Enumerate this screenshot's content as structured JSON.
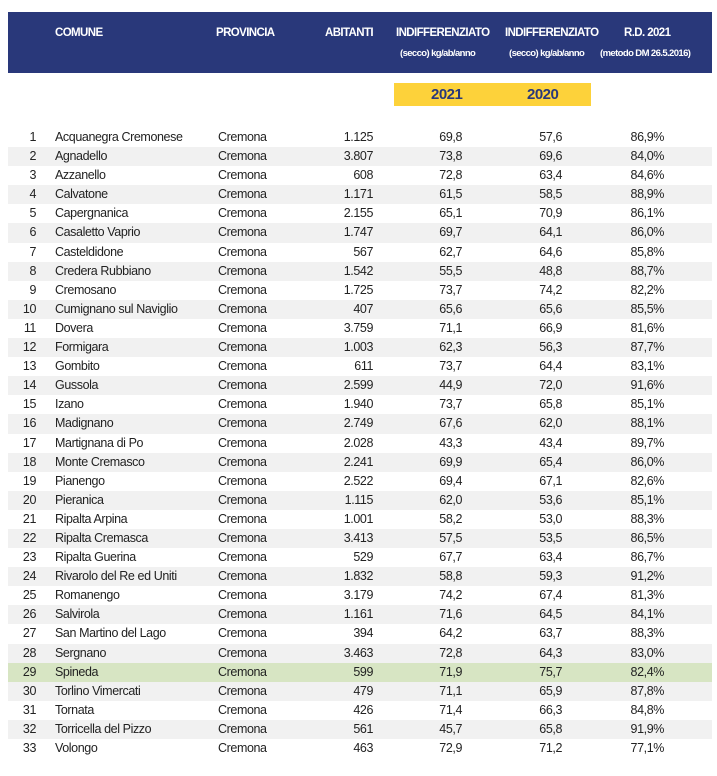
{
  "header": {
    "comune": "COMUNE",
    "provincia": "PROVINCIA",
    "abitanti": "ABITANTI",
    "indiff_1": "INDIFFERENZIATO",
    "indiff_1_sub": "(secco)  kg/ab/anno",
    "indiff_2": "INDIFFERENZIATO",
    "indiff_2_sub": "(secco)  kg/ab/anno",
    "rd": "R.D. 2021",
    "rd_sub": "(metodo DM 26.5.2016)"
  },
  "years": {
    "y1": "2021",
    "y2": "2020"
  },
  "colors": {
    "header_bg": "#29387a",
    "year_band": "#fdd23a",
    "highlight_row": "#d7e5c3",
    "alt_row": "#f1f1f1"
  },
  "highlighted_row": 29,
  "rows": [
    [
      "1",
      "Acquanegra Cremonese",
      "Cremona",
      "1.125",
      "69,8",
      "57,6",
      "86,9%"
    ],
    [
      "2",
      "Agnadello",
      "Cremona",
      "3.807",
      "73,8",
      "69,6",
      "84,0%"
    ],
    [
      "3",
      "Azzanello",
      "Cremona",
      "608",
      "72,8",
      "63,4",
      "84,6%"
    ],
    [
      "4",
      "Calvatone",
      "Cremona",
      "1.171",
      "61,5",
      "58,5",
      "88,9%"
    ],
    [
      "5",
      "Capergnanica",
      "Cremona",
      "2.155",
      "65,1",
      "70,9",
      "86,1%"
    ],
    [
      "6",
      "Casaletto Vaprio",
      "Cremona",
      "1.747",
      "69,7",
      "64,1",
      "86,0%"
    ],
    [
      "7",
      "Casteldidone",
      "Cremona",
      "567",
      "62,7",
      "64,6",
      "85,8%"
    ],
    [
      "8",
      "Credera Rubbiano",
      "Cremona",
      "1.542",
      "55,5",
      "48,8",
      "88,7%"
    ],
    [
      "9",
      "Cremosano",
      "Cremona",
      "1.725",
      "73,7",
      "74,2",
      "82,2%"
    ],
    [
      "10",
      "Cumignano sul Naviglio",
      "Cremona",
      "407",
      "65,6",
      "65,6",
      "85,5%"
    ],
    [
      "11",
      "Dovera",
      "Cremona",
      "3.759",
      "71,1",
      "66,9",
      "81,6%"
    ],
    [
      "12",
      "Formigara",
      "Cremona",
      "1.003",
      "62,3",
      "56,3",
      "87,7%"
    ],
    [
      "13",
      "Gombito",
      "Cremona",
      "611",
      "73,7",
      "64,4",
      "83,1%"
    ],
    [
      "14",
      "Gussola",
      "Cremona",
      "2.599",
      "44,9",
      "72,0",
      "91,6%"
    ],
    [
      "15",
      "Izano",
      "Cremona",
      "1.940",
      "73,7",
      "65,8",
      "85,1%"
    ],
    [
      "16",
      "Madignano",
      "Cremona",
      "2.749",
      "67,6",
      "62,0",
      "88,1%"
    ],
    [
      "17",
      "Martignana di Po",
      "Cremona",
      "2.028",
      "43,3",
      "43,4",
      "89,7%"
    ],
    [
      "18",
      "Monte Cremasco",
      "Cremona",
      "2.241",
      "69,9",
      "65,4",
      "86,0%"
    ],
    [
      "19",
      "Pianengo",
      "Cremona",
      "2.522",
      "69,4",
      "67,1",
      "82,6%"
    ],
    [
      "20",
      "Pieranica",
      "Cremona",
      "1.115",
      "62,0",
      "53,6",
      "85,1%"
    ],
    [
      "21",
      "Ripalta Arpina",
      "Cremona",
      "1.001",
      "58,2",
      "53,0",
      "88,3%"
    ],
    [
      "22",
      "Ripalta Cremasca",
      "Cremona",
      "3.413",
      "57,5",
      "53,5",
      "86,5%"
    ],
    [
      "23",
      "Ripalta Guerina",
      "Cremona",
      "529",
      "67,7",
      "63,4",
      "86,7%"
    ],
    [
      "24",
      "Rivarolo del Re ed Uniti",
      "Cremona",
      "1.832",
      "58,8",
      "59,3",
      "91,2%"
    ],
    [
      "25",
      "Romanengo",
      "Cremona",
      "3.179",
      "74,2",
      "67,4",
      "81,3%"
    ],
    [
      "26",
      "Salvirola",
      "Cremona",
      "1.161",
      "71,6",
      "64,5",
      "84,1%"
    ],
    [
      "27",
      "San Martino del Lago",
      "Cremona",
      "394",
      "64,2",
      "63,7",
      "88,3%"
    ],
    [
      "28",
      "Sergnano",
      "Cremona",
      "3.463",
      "72,8",
      "64,3",
      "83,0%"
    ],
    [
      "29",
      "Spineda",
      "Cremona",
      "599",
      "71,9",
      "75,7",
      "82,4%"
    ],
    [
      "30",
      "Torlino Vimercati",
      "Cremona",
      "479",
      "71,1",
      "65,9",
      "87,8%"
    ],
    [
      "31",
      "Tornata",
      "Cremona",
      "426",
      "71,4",
      "66,3",
      "84,8%"
    ],
    [
      "32",
      "Torricella del Pizzo",
      "Cremona",
      "561",
      "45,7",
      "65,8",
      "91,9%"
    ],
    [
      "33",
      "Volongo",
      "Cremona",
      "463",
      "72,9",
      "71,2",
      "77,1%"
    ]
  ]
}
